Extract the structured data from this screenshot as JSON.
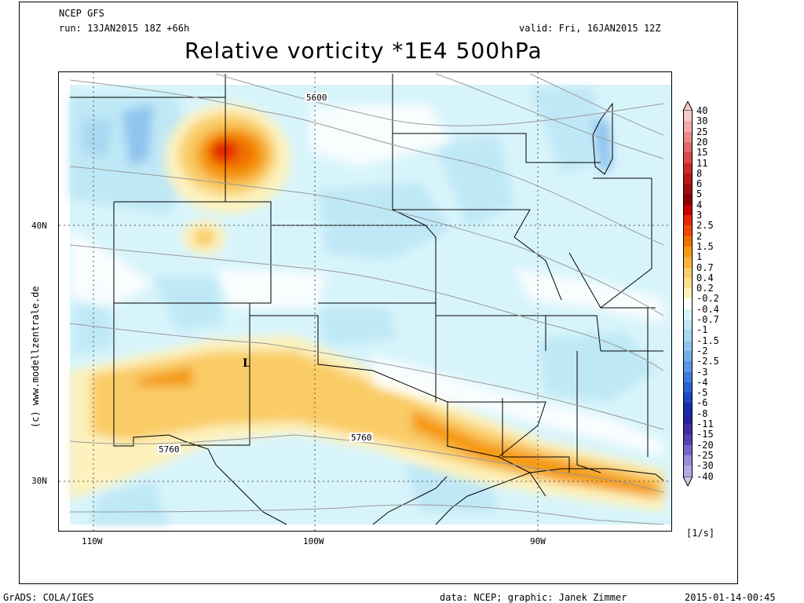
{
  "header": {
    "model": "NCEP GFS",
    "run": "run: 13JAN2015 18Z +66h",
    "valid": "valid: Fri, 16JAN2015 12Z",
    "title": "Relative vorticity *1E4 500hPa"
  },
  "footer": {
    "left": "GrADS: COLA/IGES",
    "center": "data: NCEP; graphic: Janek Zimmer",
    "right": "2015-01-14-00:45"
  },
  "watermark": "(c) www.modellzentrale.de",
  "axes": {
    "lat_labels": [
      "40N",
      "30N"
    ],
    "lon_labels": [
      "110W",
      "100W",
      "90W"
    ]
  },
  "map_labels": {
    "contour_5600": "5600",
    "contour_5760_a": "5760",
    "contour_5760_b": "5760",
    "low_marker": "L"
  },
  "colorbar": {
    "unit": "[1/s]",
    "levels": [
      "40",
      "30",
      "25",
      "20",
      "15",
      "11",
      "8",
      "6",
      "5",
      "4",
      "3",
      "2.5",
      "2",
      "1.5",
      "1",
      "0.7",
      "0.4",
      "0.2",
      "-0.2",
      "-0.4",
      "-0.7",
      "-1",
      "-1.5",
      "-2",
      "-2.5",
      "-3",
      "-4",
      "-5",
      "-6",
      "-8",
      "-11",
      "-15",
      "-20",
      "-25",
      "-30",
      "-40"
    ],
    "colors": [
      "#f7c9c9",
      "#f2aaaa",
      "#ea8a8a",
      "#e06a6a",
      "#d84a4a",
      "#cc2a2a",
      "#b81818",
      "#a00e0e",
      "#8c0000",
      "#c80000",
      "#e62800",
      "#f04a00",
      "#f07000",
      "#f59a10",
      "#f7b23a",
      "#f9cc66",
      "#fbe08e",
      "#fdf2bd",
      "#ffffff",
      "#d8f4fb",
      "#bfe8f6",
      "#a8d8f2",
      "#90c4ee",
      "#74aee8",
      "#5a96e2",
      "#3d7ddb",
      "#2a62cf",
      "#1c46bf",
      "#1a2ea6",
      "#26239a",
      "#3b2fa6",
      "#5541b3",
      "#7a66c8",
      "#9a8ad7",
      "#b5a8e4",
      "#cfc6f0"
    ]
  },
  "colors": {
    "positive_light": "#fdf2bd",
    "positive_mid": "#f9cc66",
    "positive_strong": "#f59a10",
    "negative_light": "#d8f4fb",
    "negative_mid": "#bfe8f6",
    "negative_strong": "#90c4ee",
    "contour": "#9a9a9a"
  }
}
